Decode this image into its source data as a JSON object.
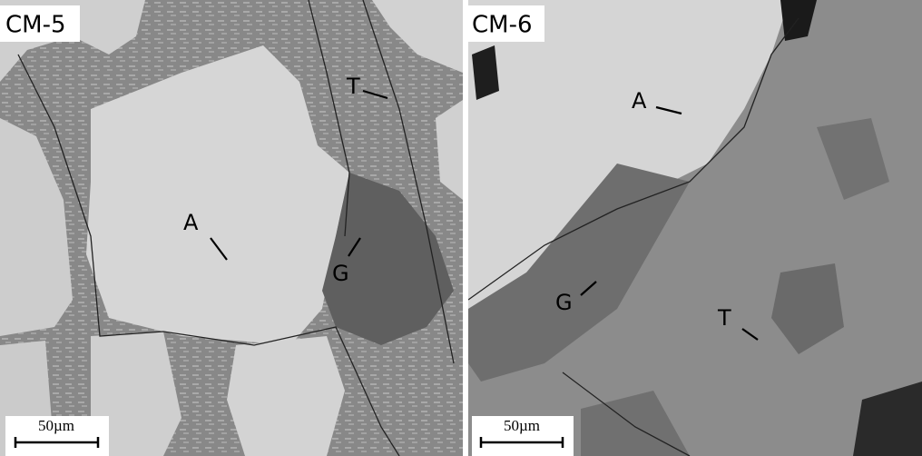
{
  "panels": [
    {
      "title": "CM-5",
      "labels": [
        "T",
        "A",
        "G"
      ],
      "scale_bar": "50µm"
    },
    {
      "title": "CM-6",
      "labels": [
        "A",
        "G",
        "T"
      ],
      "scale_bar": "50µm"
    }
  ]
}
